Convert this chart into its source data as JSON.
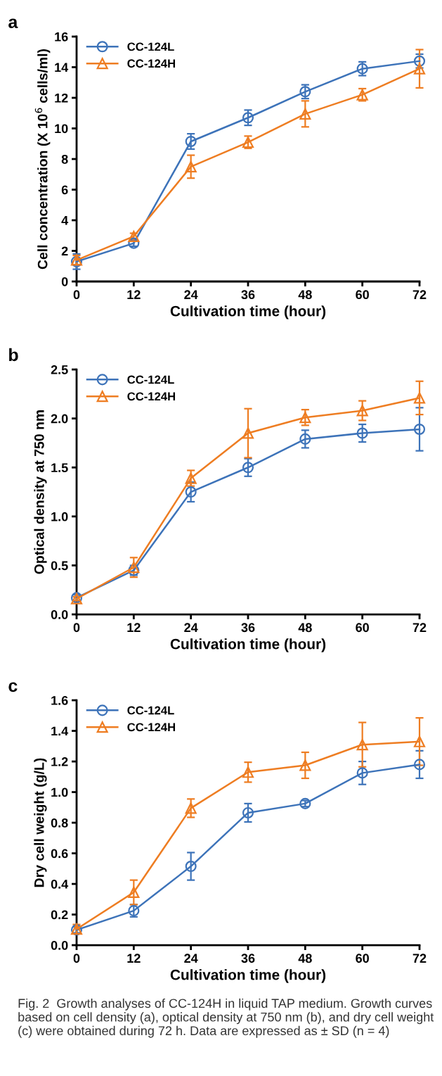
{
  "chart_data": [
    {
      "type": "line",
      "title": "a",
      "xlabel": "Cultivation time (hour)",
      "ylabel": "Cell concentration (X 10$^{6}$ cells/ml)",
      "x": [
        0,
        12,
        24,
        36,
        48,
        60,
        72
      ],
      "xlim": [
        0,
        72
      ],
      "xticks": [
        0,
        12,
        24,
        36,
        48,
        60,
        72
      ],
      "ylim": [
        0,
        16
      ],
      "yticks": [
        0,
        2,
        4,
        6,
        8,
        10,
        12,
        14,
        16
      ],
      "grid": false,
      "legend": "top left",
      "series": [
        {
          "name": "CC-124L",
          "color": "#3d73b9",
          "marker": "circle",
          "values": [
            1.3,
            2.5,
            9.15,
            10.7,
            12.4,
            13.9,
            14.4
          ],
          "errors": [
            0.5,
            0.2,
            0.5,
            0.5,
            0.45,
            0.45,
            0.45
          ]
        },
        {
          "name": "CC-124H",
          "color": "#ee7d22",
          "marker": "triangle",
          "values": [
            1.4,
            2.95,
            7.5,
            9.1,
            10.95,
            12.2,
            13.9
          ],
          "errors": [
            0.3,
            0.2,
            0.75,
            0.4,
            0.85,
            0.4,
            1.25
          ]
        }
      ]
    },
    {
      "type": "line",
      "title": "b",
      "xlabel": "Cultivation time (hour)",
      "ylabel": "Optical density at 750 nm",
      "x": [
        0,
        12,
        24,
        36,
        48,
        60,
        72
      ],
      "xlim": [
        0,
        72
      ],
      "xticks": [
        0,
        12,
        24,
        36,
        48,
        60,
        72
      ],
      "ylim": [
        0,
        2.5
      ],
      "yticks": [
        {
          "value": 0,
          "label": "0.0"
        },
        0.5,
        {
          "value": 1,
          "label": "1.0"
        },
        1.5,
        {
          "value": 2,
          "label": "2.0"
        },
        2.5
      ],
      "grid": false,
      "legend": "top left",
      "series": [
        {
          "name": "CC-124L",
          "color": "#3d73b9",
          "marker": "circle",
          "values": [
            0.17,
            0.45,
            1.25,
            1.5,
            1.79,
            1.85,
            1.89
          ],
          "errors": [
            0.03,
            0.05,
            0.1,
            0.09,
            0.09,
            0.09,
            0.22
          ]
        },
        {
          "name": "CC-124H",
          "color": "#ee7d22",
          "marker": "triangle",
          "values": [
            0.16,
            0.48,
            1.39,
            1.85,
            2.01,
            2.08,
            2.21
          ],
          "errors": [
            0.02,
            0.1,
            0.08,
            0.25,
            0.08,
            0.1,
            0.17
          ]
        }
      ]
    },
    {
      "type": "line",
      "title": "c",
      "xlabel": "Cultivation time (hour)",
      "ylabel": "Dry cell weight (g/L)",
      "x": [
        0,
        12,
        24,
        36,
        48,
        60,
        72
      ],
      "xlim": [
        0,
        72
      ],
      "xticks": [
        0,
        12,
        24,
        36,
        48,
        60,
        72
      ],
      "ylim": [
        0,
        1.6
      ],
      "yticks": [
        {
          "value": 0,
          "label": "0.0"
        },
        0.2,
        0.4,
        0.6,
        0.8,
        {
          "value": 1,
          "label": "1.0"
        },
        1.2,
        1.4,
        1.6
      ],
      "grid": false,
      "legend": "top left",
      "annotations": [
        "Fig. 2  Growth analyses of CC-124H in liquid TAP medium. Growth curves based on cell density (a), optical density at 750 nm (b), and dry cell weight (c) were obtained during 72 h. Data are expressed as ± SD (n = 4)"
      ],
      "series": [
        {
          "name": "CC-124L",
          "color": "#3d73b9",
          "marker": "circle",
          "values": [
            0.1,
            0.225,
            0.515,
            0.865,
            0.925,
            1.125,
            1.18
          ],
          "errors": [
            0.02,
            0.04,
            0.09,
            0.06,
            0.02,
            0.075,
            0.09
          ]
        },
        {
          "name": "CC-124H",
          "color": "#ee7d22",
          "marker": "triangle",
          "values": [
            0.105,
            0.345,
            0.895,
            1.13,
            1.175,
            1.31,
            1.33
          ],
          "errors": [
            0.03,
            0.08,
            0.06,
            0.065,
            0.085,
            0.145,
            0.155
          ]
        }
      ]
    }
  ]
}
